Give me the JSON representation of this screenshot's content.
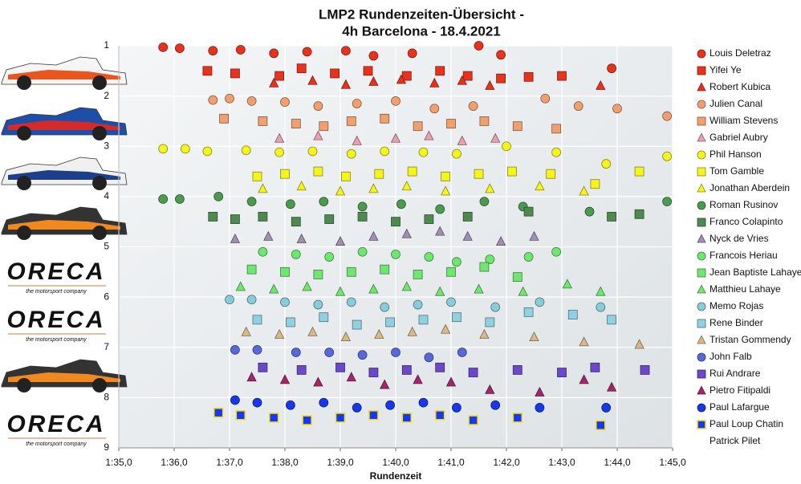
{
  "chart_data": {
    "type": "scatter",
    "title": [
      "LMP2 Rundenzeiten-Übersicht -",
      "4h Barcelona - 18.4.2021"
    ],
    "x_label": "Rundenzeit",
    "xlim": [
      95,
      105
    ],
    "xticks": [
      {
        "value": 95,
        "label": "1:35,0"
      },
      {
        "value": 96,
        "label": "1:36,0"
      },
      {
        "value": 97,
        "label": "1:37,0"
      },
      {
        "value": 98,
        "label": "1:38,0"
      },
      {
        "value": 99,
        "label": "1:39,0"
      },
      {
        "value": 100,
        "label": "1:40,0"
      },
      {
        "value": 101,
        "label": "1:41,0"
      },
      {
        "value": 102,
        "label": "1:42,0"
      },
      {
        "value": 103,
        "label": "1:43,0"
      },
      {
        "value": 104,
        "label": "1:44,0"
      },
      {
        "value": 105,
        "label": "1:45,0"
      }
    ],
    "ylim": [
      9,
      1
    ],
    "yticks": [
      1,
      2,
      3,
      4,
      5,
      6,
      7,
      8,
      9
    ],
    "grid": true,
    "legend": "right",
    "series": [
      {
        "name": "Louis Deletraz",
        "color": "#e8321e",
        "marker": "circle",
        "x": [
          95.8,
          96.1,
          96.7,
          97.2,
          97.8,
          98.4,
          99.1,
          99.6,
          100.3,
          101.5,
          101.9,
          103.9
        ],
        "y": [
          1.03,
          1.05,
          1.1,
          1.08,
          1.15,
          1.12,
          1.1,
          1.2,
          1.15,
          1.0,
          1.18,
          1.45
        ]
      },
      {
        "name": "Yifei Ye",
        "color": "#e8321e",
        "marker": "square",
        "x": [
          96.6,
          97.1,
          97.9,
          98.3,
          98.9,
          99.5,
          100.2,
          100.8,
          101.3,
          101.9,
          102.4,
          103.0
        ],
        "y": [
          1.5,
          1.55,
          1.6,
          1.45,
          1.55,
          1.5,
          1.6,
          1.5,
          1.6,
          1.65,
          1.62,
          1.6
        ]
      },
      {
        "name": "Robert Kubica",
        "color": "#e8321e",
        "marker": "triangle",
        "x": [
          97.8,
          98.5,
          99.1,
          99.6,
          100.1,
          100.7,
          101.2,
          101.7,
          103.7
        ],
        "y": [
          1.75,
          1.7,
          1.78,
          1.72,
          1.68,
          1.75,
          1.7,
          1.8,
          1.8
        ]
      },
      {
        "name": "Julien Canal",
        "color": "#f0a070",
        "marker": "circle",
        "x": [
          96.7,
          97.0,
          97.4,
          98.0,
          98.6,
          99.3,
          100.0,
          100.7,
          101.4,
          102.7,
          103.3,
          104.0,
          104.9
        ],
        "y": [
          2.08,
          2.05,
          2.1,
          2.12,
          2.2,
          2.15,
          2.1,
          2.25,
          2.2,
          2.05,
          2.2,
          2.25,
          2.4
        ]
      },
      {
        "name": "William Stevens",
        "color": "#f0a070",
        "marker": "square",
        "x": [
          96.9,
          97.6,
          98.2,
          98.7,
          99.2,
          99.8,
          100.4,
          101.0,
          101.6,
          102.2,
          102.9
        ],
        "y": [
          2.45,
          2.5,
          2.55,
          2.6,
          2.5,
          2.45,
          2.6,
          2.55,
          2.5,
          2.6,
          2.65
        ]
      },
      {
        "name": "Gabriel Aubry",
        "color": "#e8a0b0",
        "marker": "triangle",
        "x": [
          97.9,
          98.6,
          99.3,
          100.0,
          100.6,
          101.2,
          101.8
        ],
        "y": [
          2.85,
          2.8,
          2.9,
          2.85,
          2.8,
          2.9,
          2.85
        ]
      },
      {
        "name": "Phil Hanson",
        "color": "#f5f51e",
        "marker": "circle",
        "x": [
          95.8,
          96.2,
          96.6,
          97.3,
          97.9,
          98.5,
          99.2,
          99.8,
          100.5,
          101.1,
          102.0,
          102.9,
          103.8,
          104.9
        ],
        "y": [
          3.05,
          3.05,
          3.1,
          3.08,
          3.12,
          3.1,
          3.15,
          3.1,
          3.12,
          3.15,
          3.0,
          3.12,
          3.35,
          3.2
        ]
      },
      {
        "name": "Tom Gamble",
        "color": "#f5f51e",
        "marker": "square",
        "x": [
          97.5,
          98.0,
          98.6,
          99.1,
          99.7,
          100.3,
          100.9,
          101.5,
          102.1,
          102.8,
          103.6,
          104.4
        ],
        "y": [
          3.6,
          3.55,
          3.5,
          3.6,
          3.55,
          3.5,
          3.6,
          3.55,
          3.5,
          3.55,
          3.75,
          3.5
        ]
      },
      {
        "name": "Jonathan Aberdein",
        "color": "#f5f51e",
        "marker": "triangle",
        "x": [
          97.6,
          98.3,
          99.0,
          99.6,
          100.2,
          100.9,
          101.7,
          102.6,
          103.4
        ],
        "y": [
          3.85,
          3.8,
          3.9,
          3.85,
          3.8,
          3.9,
          3.85,
          3.8,
          3.9
        ]
      },
      {
        "name": "Roman Rusinov",
        "color": "#4a9a50",
        "marker": "circle",
        "x": [
          95.8,
          96.1,
          96.8,
          97.4,
          98.1,
          98.7,
          99.4,
          100.1,
          100.8,
          101.6,
          102.3,
          103.5,
          104.9
        ],
        "y": [
          4.05,
          4.05,
          4.0,
          4.1,
          4.15,
          4.1,
          4.2,
          4.15,
          4.25,
          4.1,
          4.2,
          4.3,
          4.1
        ]
      },
      {
        "name": "Franco Colapinto",
        "color": "#4e8a50",
        "marker": "square",
        "x": [
          96.7,
          97.1,
          97.6,
          98.2,
          98.8,
          99.4,
          100.0,
          100.6,
          101.3,
          102.4,
          103.9,
          104.4
        ],
        "y": [
          4.4,
          4.45,
          4.4,
          4.5,
          4.45,
          4.4,
          4.5,
          4.45,
          4.4,
          4.3,
          4.4,
          4.35
        ]
      },
      {
        "name": "Nyck de Vries",
        "color": "#a090b0",
        "marker": "triangle",
        "x": [
          97.1,
          97.7,
          98.3,
          99.0,
          99.6,
          100.2,
          100.8,
          101.3,
          101.9,
          102.5
        ],
        "y": [
          4.85,
          4.8,
          4.85,
          4.9,
          4.8,
          4.75,
          4.7,
          4.8,
          4.9,
          4.8
        ]
      },
      {
        "name": "Francois Heriau",
        "color": "#6fe66f",
        "marker": "circle",
        "x": [
          97.6,
          98.2,
          98.8,
          99.4,
          100.0,
          100.6,
          101.1,
          101.7,
          102.4,
          102.9
        ],
        "y": [
          5.1,
          5.15,
          5.2,
          5.1,
          5.15,
          5.2,
          5.3,
          5.25,
          5.2,
          5.1
        ]
      },
      {
        "name": "Jean Baptiste Lahaye",
        "color": "#6fe66f",
        "marker": "square",
        "x": [
          97.4,
          98.0,
          98.6,
          99.2,
          99.8,
          100.4,
          101.0,
          101.6,
          102.2
        ],
        "y": [
          5.45,
          5.5,
          5.55,
          5.5,
          5.45,
          5.55,
          5.5,
          5.4,
          5.6
        ]
      },
      {
        "name": "Matthieu Lahaye",
        "color": "#6fe66f",
        "marker": "triangle",
        "x": [
          97.2,
          97.8,
          98.4,
          99.0,
          99.6,
          100.2,
          100.8,
          101.5,
          102.3,
          103.1,
          103.7
        ],
        "y": [
          5.8,
          5.85,
          5.8,
          5.9,
          5.85,
          5.8,
          5.9,
          5.85,
          5.9,
          5.75,
          5.9
        ]
      },
      {
        "name": "Memo Rojas",
        "color": "#88ccd8",
        "marker": "circle",
        "x": [
          97.0,
          97.4,
          98.0,
          98.6,
          99.2,
          99.8,
          100.4,
          101.0,
          101.8,
          102.6,
          103.7
        ],
        "y": [
          6.05,
          6.05,
          6.1,
          6.15,
          6.1,
          6.2,
          6.15,
          6.1,
          6.2,
          6.1,
          6.2
        ]
      },
      {
        "name": "Rene Binder",
        "color": "#90d0e0",
        "marker": "square",
        "x": [
          97.5,
          98.1,
          98.7,
          99.3,
          99.9,
          100.5,
          101.1,
          101.7,
          102.4,
          103.2,
          103.9
        ],
        "y": [
          6.45,
          6.5,
          6.4,
          6.55,
          6.5,
          6.45,
          6.4,
          6.5,
          6.3,
          6.35,
          6.45
        ]
      },
      {
        "name": "Tristan Gommendy",
        "color": "#d8b88a",
        "marker": "triangle",
        "x": [
          97.3,
          97.9,
          98.5,
          99.1,
          99.7,
          100.3,
          100.9,
          101.6,
          102.5,
          103.4,
          104.4
        ],
        "y": [
          6.7,
          6.75,
          6.7,
          6.8,
          6.75,
          6.7,
          6.65,
          6.75,
          6.8,
          6.9,
          6.95
        ]
      },
      {
        "name": "John Falb",
        "color": "#5868d8",
        "marker": "circle",
        "x": [
          97.1,
          97.5,
          98.2,
          98.8,
          99.4,
          100.0,
          100.6,
          101.2
        ],
        "y": [
          7.05,
          7.05,
          7.1,
          7.1,
          7.15,
          7.1,
          7.2,
          7.1
        ]
      },
      {
        "name": "Rui Andrare",
        "color": "#6a48c8",
        "marker": "square",
        "x": [
          97.6,
          98.3,
          99.0,
          99.6,
          100.2,
          100.8,
          101.4,
          102.2,
          103.0,
          103.6,
          104.5
        ],
        "y": [
          7.4,
          7.45,
          7.4,
          7.5,
          7.45,
          7.4,
          7.5,
          7.45,
          7.5,
          7.4,
          7.45
        ]
      },
      {
        "name": "Pietro Fitipaldi",
        "color": "#a02868",
        "marker": "triangle",
        "x": [
          97.4,
          98.0,
          98.6,
          99.2,
          99.8,
          100.4,
          101.0,
          101.7,
          102.6,
          103.4,
          103.9
        ],
        "y": [
          7.6,
          7.65,
          7.7,
          7.6,
          7.75,
          7.65,
          7.7,
          7.85,
          7.9,
          7.65,
          7.8
        ]
      },
      {
        "name": "Paul Lafargue",
        "color": "#1838e8",
        "marker": "circle",
        "x": [
          97.1,
          97.5,
          98.1,
          98.7,
          99.3,
          99.9,
          100.5,
          101.1,
          101.8,
          102.6,
          103.8
        ],
        "y": [
          8.05,
          8.1,
          8.15,
          8.1,
          8.2,
          8.15,
          8.1,
          8.2,
          8.15,
          8.2,
          8.2
        ]
      },
      {
        "name": "Paul Loup Chatin",
        "color": "#1838f0",
        "edgecolor": "#f0e020",
        "marker": "square",
        "x": [
          96.8,
          97.2,
          97.8,
          98.4,
          99.0,
          99.6,
          100.2,
          100.8,
          101.4,
          102.2,
          103.7
        ],
        "y": [
          8.3,
          8.35,
          8.4,
          8.45,
          8.4,
          8.35,
          8.4,
          8.35,
          8.45,
          8.4,
          8.55
        ]
      },
      {
        "name": "Patrick Pilet"
      }
    ]
  },
  "logo": {
    "name": "ORECA",
    "tagline": "the motorsport company"
  }
}
